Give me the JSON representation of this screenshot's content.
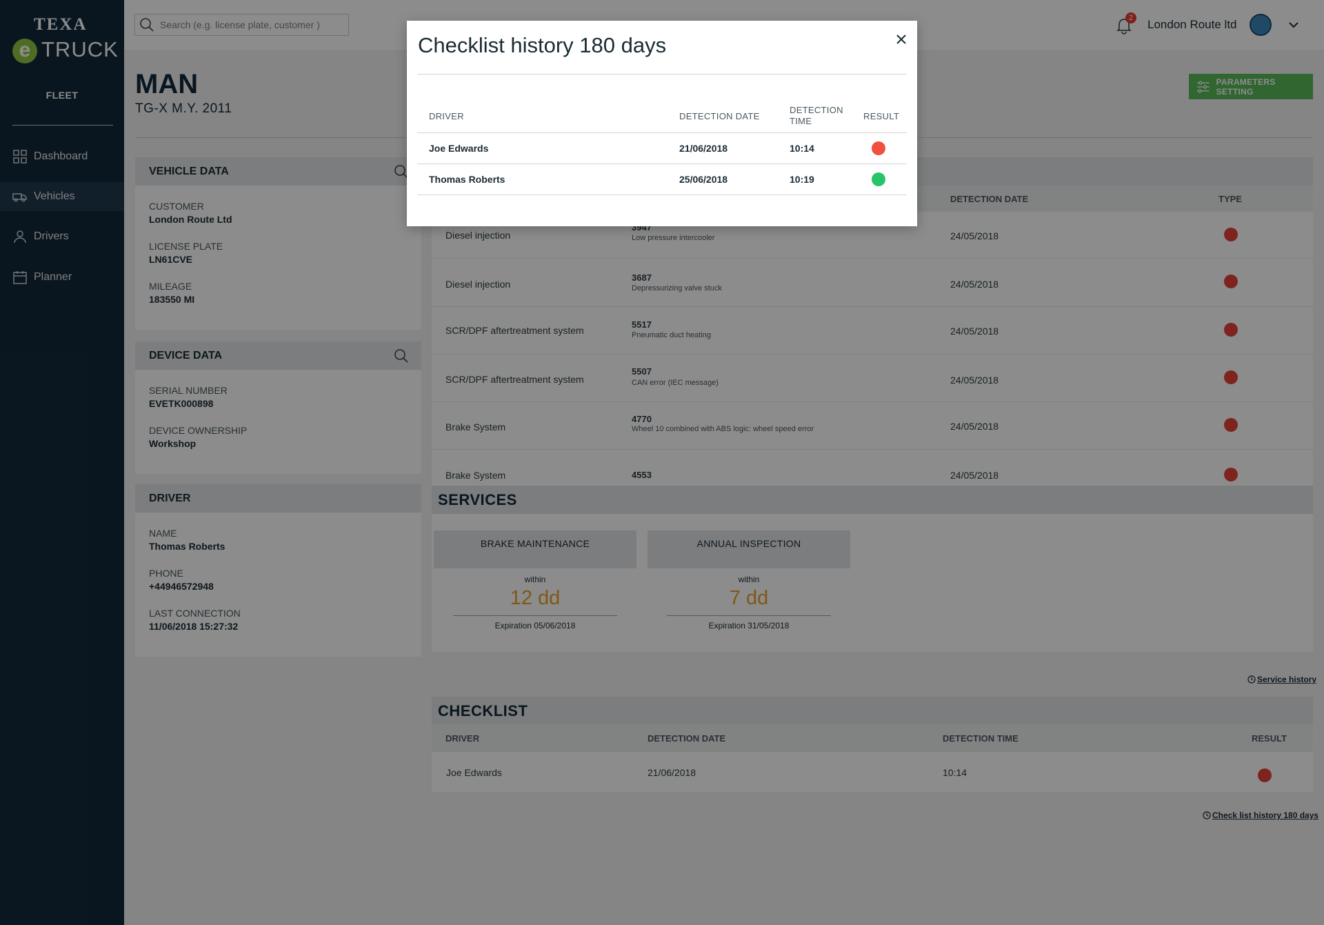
{
  "brand": {
    "top": "TEXA",
    "e": "e",
    "bottom": "TRUCK"
  },
  "sidebar": {
    "section": "FLEET",
    "items": [
      {
        "label": "Dashboard",
        "icon": "dashboard-icon"
      },
      {
        "label": "Vehicles",
        "icon": "truck-icon"
      },
      {
        "label": "Drivers",
        "icon": "user-icon"
      },
      {
        "label": "Planner",
        "icon": "calendar-icon"
      }
    ]
  },
  "topbar": {
    "search_placeholder": "Search (e.g. license plate, customer )",
    "notification_count": "2",
    "user": "London Route ltd"
  },
  "vehicle": {
    "make": "MAN",
    "model": "TG-X  M.Y. 2011"
  },
  "parameters_button": "PARAMETERS SETTING",
  "vehicle_data": {
    "title": "VEHICLE DATA",
    "fields": [
      {
        "label": "CUSTOMER",
        "value": "London Route Ltd"
      },
      {
        "label": "LICENSE PLATE",
        "value": "LN61CVE"
      },
      {
        "label": "MILEAGE",
        "value": "183550 MI"
      }
    ]
  },
  "device_data": {
    "title": "DEVICE DATA",
    "fields": [
      {
        "label": "SERIAL NUMBER",
        "value": "EVETK000898"
      },
      {
        "label": "DEVICE OWNERSHIP",
        "value": "Workshop"
      }
    ]
  },
  "driver": {
    "title": "DRIVER",
    "fields": [
      {
        "label": "NAME",
        "value": "Thomas Roberts"
      },
      {
        "label": "PHONE",
        "value": "+44946572948"
      },
      {
        "label": "LAST CONNECTION",
        "value": "11/06/2018 15:27:32"
      }
    ]
  },
  "faults": {
    "columns": {
      "date": "DETECTION DATE",
      "type": "TYPE"
    },
    "rows": [
      {
        "system": "Diesel injection",
        "code": "3947",
        "desc": "Low pressure intercooler",
        "date": "24/05/2018",
        "type_color": "#e6423a"
      },
      {
        "system": "Diesel injection",
        "code": "3687",
        "desc": "Depressurizing valve stuck",
        "date": "24/05/2018",
        "type_color": "#e6423a"
      },
      {
        "system": "SCR/DPF aftertreatment system",
        "code": "5517",
        "desc": "Pneumatic duct heating",
        "date": "24/05/2018",
        "type_color": "#e6423a"
      },
      {
        "system": "SCR/DPF aftertreatment system",
        "code": "5507",
        "desc": "CAN error (IEC message)",
        "date": "24/05/2018",
        "type_color": "#e6423a"
      },
      {
        "system": "Brake System",
        "code": "4770",
        "desc": "Wheel 10 combined with ABS logic: wheel speed error",
        "date": "24/05/2018",
        "type_color": "#e6423a"
      },
      {
        "system": "Brake System",
        "code": "4553",
        "desc": "",
        "date": "24/05/2018",
        "type_color": "#e6423a"
      }
    ]
  },
  "services": {
    "title": "SERVICES",
    "cards": [
      {
        "name": "BRAKE MAINTENANCE",
        "within": "within",
        "days": "12 dd",
        "expiration": "Expiration 05/06/2018"
      },
      {
        "name": "ANNUAL INSPECTION",
        "within": "within",
        "days": "7 dd",
        "expiration": "Expiration 31/05/2018"
      }
    ],
    "history_link": "Service history"
  },
  "checklist": {
    "title": "CHECKLIST",
    "columns": {
      "driver": "DRIVER",
      "date": "DETECTION DATE",
      "time": "DETECTION TIME",
      "result": "RESULT"
    },
    "row": {
      "driver": "Joe Edwards",
      "date": "21/06/2018",
      "time": "10:14",
      "result_color": "#e6423a"
    },
    "history_link": "Check list history 180 days"
  },
  "modal": {
    "title": "Checklist history 180 days",
    "columns": {
      "driver": "DRIVER",
      "date": "DETECTION DATE",
      "time_line1": "DETECTION",
      "time_line2": "TIME",
      "result": "RESULT"
    },
    "rows": [
      {
        "driver": "Joe Edwards",
        "date": "21/06/2018",
        "time": "10:14",
        "result_color": "#f0503e"
      },
      {
        "driver": "Thomas Roberts",
        "date": "25/06/2018",
        "time": "10:19",
        "result_color": "#27c46a"
      }
    ]
  }
}
